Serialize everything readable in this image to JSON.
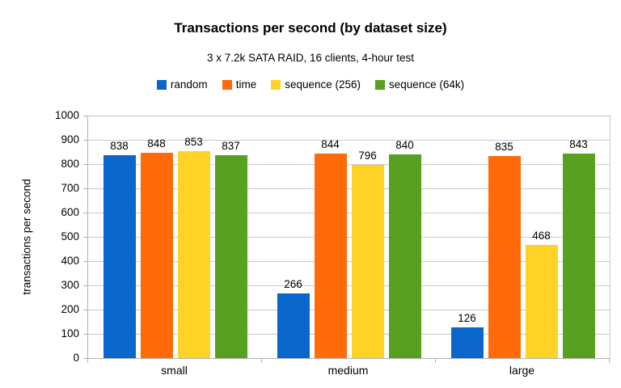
{
  "chart_data": {
    "type": "bar",
    "title": "Transactions per second (by dataset size)",
    "subtitle": "3 x 7.2k SATA RAID, 16 clients, 4-hour test",
    "xlabel": "",
    "ylabel": "transactions per second",
    "categories": [
      "small",
      "medium",
      "large"
    ],
    "series": [
      {
        "name": "random",
        "color": "#0b66cc",
        "values": [
          838,
          266,
          126
        ]
      },
      {
        "name": "time",
        "color": "#ff6a0a",
        "values": [
          848,
          844,
          835
        ]
      },
      {
        "name": "sequence (256)",
        "color": "#ffd228",
        "values": [
          853,
          796,
          468
        ]
      },
      {
        "name": "sequence (64k)",
        "color": "#58a020",
        "values": [
          837,
          840,
          843
        ]
      }
    ],
    "ylim": [
      0,
      1000
    ],
    "ytick_step": 100,
    "grid": true,
    "legend_position": "top",
    "data_labels": true
  },
  "colors": {
    "background": "#ffffff",
    "grid": "#c9c9c9",
    "axis": "#b3b3b3",
    "text": "#000000"
  }
}
